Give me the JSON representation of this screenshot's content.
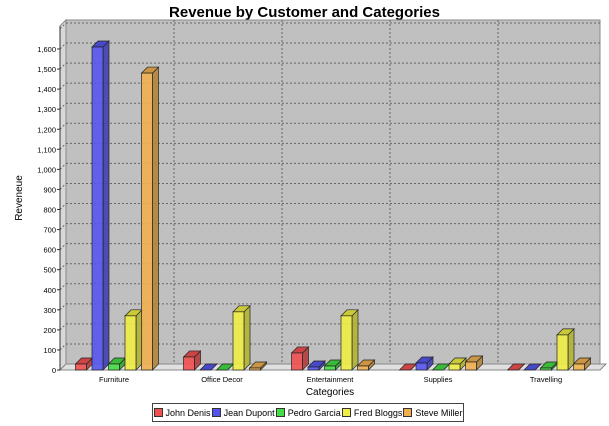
{
  "chart_data": {
    "type": "bar",
    "title": "Revenue by Customer and Categories",
    "xlabel": "Categories",
    "ylabel": "Reveneue",
    "ylim": [
      0,
      1700
    ],
    "yticks": [
      "0",
      "100",
      "200",
      "300",
      "400",
      "500",
      "600",
      "700",
      "800",
      "900",
      "1,000",
      "1,100",
      "1,200",
      "1,300",
      "1,400",
      "1,500",
      "1,600"
    ],
    "grid": true,
    "legend_position": "bottom",
    "style": "3d",
    "categories": [
      "Furniture",
      "Office Decor",
      "Entertainment",
      "Supplies",
      "Travelling"
    ],
    "series": [
      {
        "name": "John Denis",
        "color": "#f05050",
        "values": [
          30,
          65,
          85,
          0,
          0
        ]
      },
      {
        "name": "Jean Dupont",
        "color": "#5555ee",
        "values": [
          1610,
          0,
          15,
          35,
          0
        ]
      },
      {
        "name": "Pedro Garcia",
        "color": "#44dd44",
        "values": [
          30,
          0,
          20,
          0,
          10
        ]
      },
      {
        "name": "Fred Bloggs",
        "color": "#eeee44",
        "values": [
          270,
          290,
          270,
          30,
          175
        ]
      },
      {
        "name": "Steve Miller",
        "color": "#f0b050",
        "values": [
          1480,
          10,
          20,
          40,
          30
        ]
      }
    ]
  }
}
